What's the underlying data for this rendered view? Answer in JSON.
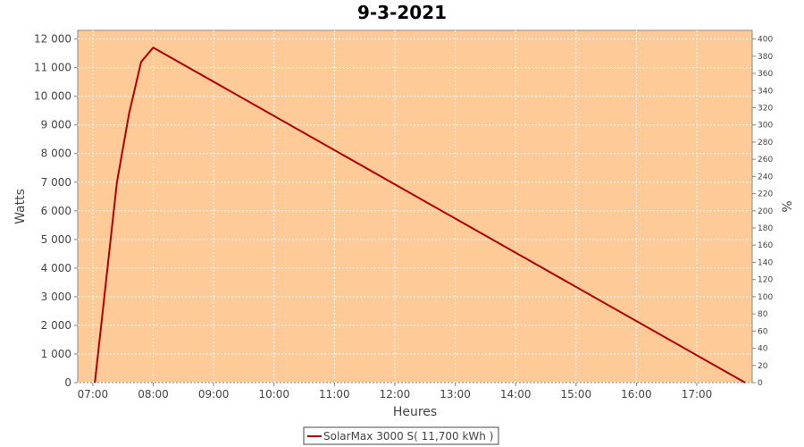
{
  "chart_data": {
    "type": "line",
    "title": "9-3-2021",
    "xlabel": "Heures",
    "ylabel": "Watts",
    "y2label": "%",
    "x_ticks": [
      "07:00",
      "08:00",
      "09:00",
      "10:00",
      "11:00",
      "12:00",
      "13:00",
      "14:00",
      "15:00",
      "16:00",
      "17:00"
    ],
    "y_ticks": [
      "0",
      "1 000",
      "2 000",
      "3 000",
      "4 000",
      "5 000",
      "6 000",
      "7 000",
      "8 000",
      "9 000",
      "10 000",
      "11 000",
      "12 000"
    ],
    "y2_ticks": [
      "0",
      "20",
      "40",
      "60",
      "80",
      "100",
      "120",
      "140",
      "160",
      "180",
      "200",
      "220",
      "240",
      "260",
      "280",
      "300",
      "320",
      "340",
      "360",
      "380",
      "400"
    ],
    "ylim": [
      0,
      12300
    ],
    "y2lim": [
      0,
      410
    ],
    "xlim": [
      "06:45",
      "17:55"
    ],
    "grid": true,
    "legend_position": "bottom",
    "series": [
      {
        "name": "SolarMax 3000 S( 11,700 kWh )",
        "color": "#b00000",
        "points": [
          {
            "x": "07:02",
            "y": 0
          },
          {
            "x": "07:24",
            "y": 7000
          },
          {
            "x": "07:36",
            "y": 9400
          },
          {
            "x": "07:48",
            "y": 11200
          },
          {
            "x": "08:00",
            "y": 11700
          },
          {
            "x": "17:48",
            "y": 0
          }
        ]
      }
    ],
    "colors": {
      "plot_background": "#fecb98",
      "grid": "#ffffff"
    }
  }
}
